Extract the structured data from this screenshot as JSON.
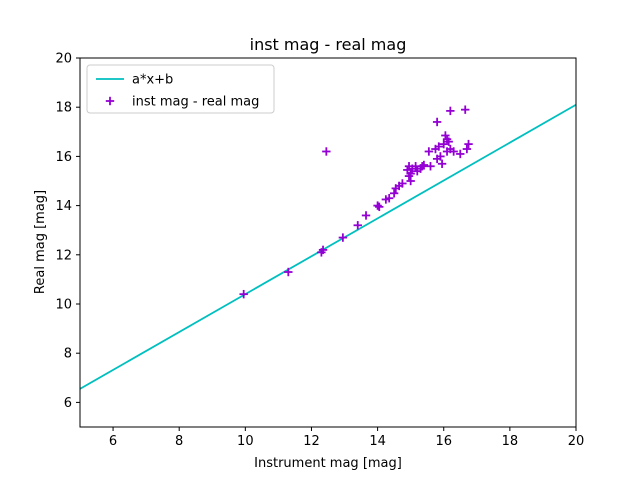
{
  "chart_data": {
    "type": "scatter",
    "title": "inst mag - real mag",
    "xlabel": "Instrument mag [mag]",
    "ylabel": "Real mag [mag]",
    "xlim": [
      5,
      20
    ],
    "ylim": [
      5,
      20
    ],
    "xticks": [
      6,
      8,
      10,
      12,
      14,
      16,
      18,
      20
    ],
    "yticks": [
      6,
      8,
      10,
      12,
      14,
      16,
      18,
      20
    ],
    "grid": false,
    "legend_position": "top-left",
    "series": [
      {
        "name": "a*x+b",
        "kind": "line",
        "color": "#00bfbf",
        "x": [
          5,
          20
        ],
        "y": [
          6.55,
          18.1
        ]
      },
      {
        "name": "inst mag - real mag",
        "kind": "scatter",
        "marker": "+",
        "color": "#9400d3",
        "x": [
          9.95,
          11.3,
          12.3,
          12.35,
          12.45,
          12.95,
          13.4,
          13.65,
          14.0,
          14.05,
          14.25,
          14.35,
          14.5,
          14.55,
          14.65,
          14.75,
          14.9,
          14.95,
          14.95,
          15.0,
          15.0,
          15.05,
          15.15,
          15.2,
          15.3,
          15.35,
          15.4,
          15.55,
          15.6,
          15.75,
          15.8,
          15.8,
          15.85,
          15.9,
          15.95,
          16.0,
          16.05,
          16.1,
          16.1,
          16.15,
          16.2,
          16.2,
          16.3,
          16.5,
          16.65,
          16.7,
          16.75
        ],
        "y": [
          10.4,
          11.3,
          12.1,
          12.2,
          16.2,
          12.7,
          13.2,
          13.6,
          14.0,
          13.95,
          14.25,
          14.3,
          14.5,
          14.7,
          14.8,
          14.9,
          15.45,
          15.2,
          15.6,
          15.0,
          15.3,
          15.5,
          15.6,
          15.4,
          15.5,
          15.6,
          15.65,
          16.2,
          15.6,
          16.3,
          15.9,
          17.4,
          16.4,
          16.0,
          15.7,
          16.5,
          16.85,
          16.7,
          16.2,
          16.6,
          17.85,
          16.3,
          16.2,
          16.1,
          17.9,
          16.3,
          16.5
        ]
      }
    ]
  }
}
